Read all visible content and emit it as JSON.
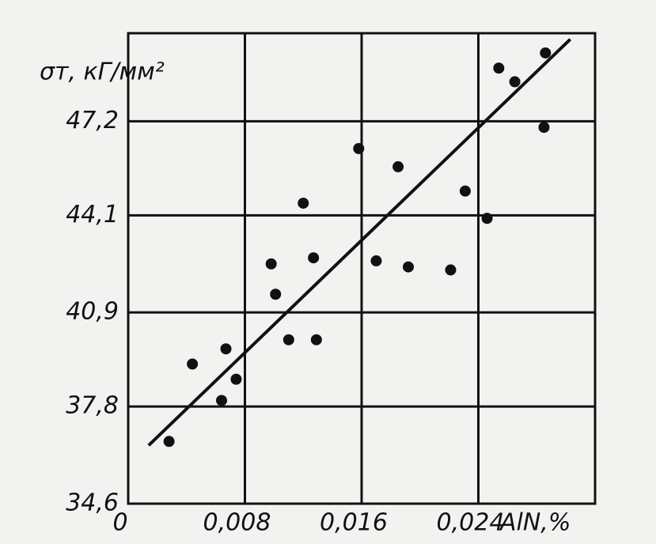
{
  "chart_data": {
    "type": "scatter",
    "ylabel": "σт, кГ/мм²",
    "xlabel": "AlN,%",
    "x": [
      0.0028,
      0.0044,
      0.0067,
      0.0064,
      0.0074,
      0.0098,
      0.0101,
      0.011,
      0.012,
      0.0127,
      0.0129,
      0.0158,
      0.017,
      0.0185,
      0.0192,
      0.0221,
      0.0231,
      0.0246,
      0.0254,
      0.0265,
      0.0285,
      0.0286
    ],
    "values": [
      36.65,
      39.2,
      39.7,
      38.0,
      38.7,
      42.5,
      41.5,
      40.0,
      44.5,
      42.7,
      40.0,
      46.3,
      42.6,
      45.7,
      42.4,
      42.3,
      44.9,
      44.0,
      48.95,
      48.5,
      47.0,
      49.45
    ],
    "color": "#111111",
    "fit_line": {
      "x": [
        0.0014,
        0.0303
      ],
      "values": [
        36.52,
        49.9
      ]
    },
    "xlim": [
      0,
      0.032
    ],
    "ylim": [
      34.6,
      50.1
    ],
    "xticks": [
      0,
      {
        "value": 0.008,
        "label": "0,008"
      },
      {
        "value": 0.016,
        "label": "0,016"
      },
      {
        "value": 0.024,
        "label": "0,024"
      }
    ],
    "yticks": [
      {
        "value": 34.6,
        "label": "34,6"
      },
      {
        "value": 37.8,
        "label": "37,8"
      },
      {
        "value": 40.9,
        "label": "40,9"
      },
      {
        "value": 44.1,
        "label": "44,1"
      },
      {
        "value": 47.2,
        "label": "47,2"
      }
    ],
    "grid": true
  }
}
